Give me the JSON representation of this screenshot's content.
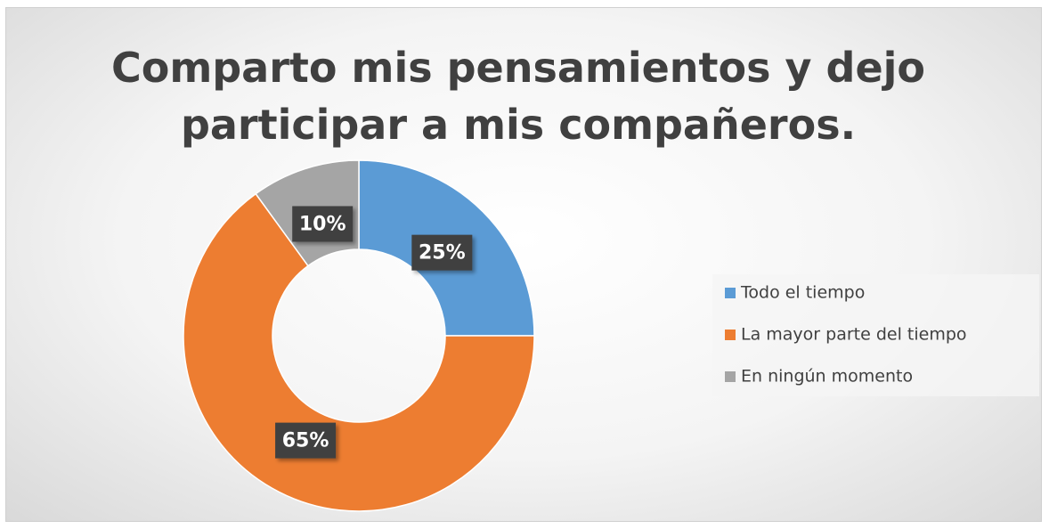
{
  "chart_data": {
    "type": "donut",
    "title": "Comparto mis pensamientos y dejo participar a mis compañeros.",
    "categories": [
      "Todo el tiempo",
      "La mayor parte del tiempo",
      "En ningún momento"
    ],
    "values": [
      25,
      65,
      10
    ],
    "value_labels": [
      "25%",
      "65%",
      "10%"
    ],
    "colors": [
      "#5b9bd5",
      "#ed7d31",
      "#a5a5a5"
    ],
    "legend": "right"
  }
}
